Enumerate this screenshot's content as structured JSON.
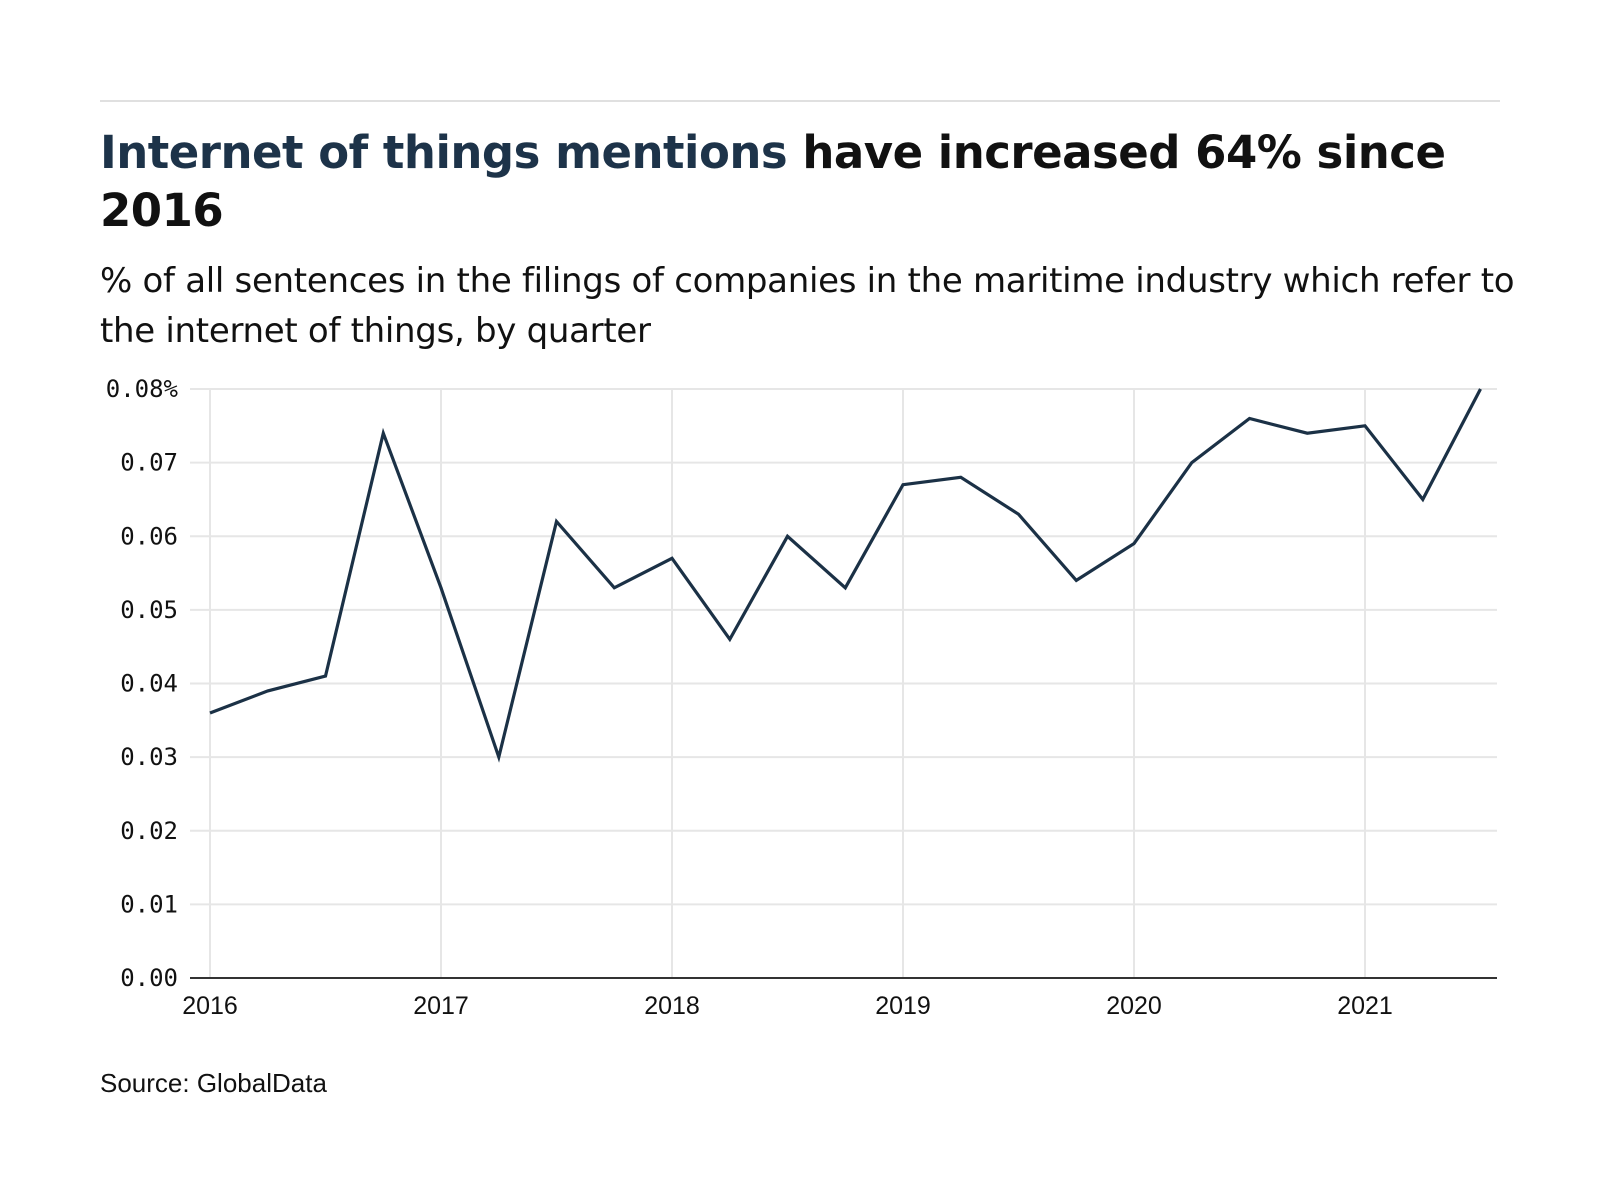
{
  "header": {
    "title_accent": "Internet of things mentions",
    "title_rest": " have increased 64% since 2016",
    "subtitle": "% of all sentences in the filings of companies in the maritime industry which refer to the internet of things, by quarter"
  },
  "footer": {
    "source": "Source: GlobalData"
  },
  "colors": {
    "accent": "#1d3349",
    "line": "#1b3146",
    "grid": "#e6e6e6",
    "axis": "#333333"
  },
  "chart_data": {
    "type": "line",
    "title": "Internet of things mentions have increased 64% since 2016",
    "subtitle": "% of all sentences in the filings of companies in the maritime industry which refer to the internet of things, by quarter",
    "xlabel": "",
    "ylabel": "",
    "x": [
      "2016 Q1",
      "2016 Q2",
      "2016 Q3",
      "2016 Q4",
      "2017 Q1",
      "2017 Q2",
      "2017 Q3",
      "2017 Q4",
      "2018 Q1",
      "2018 Q2",
      "2018 Q3",
      "2018 Q4",
      "2019 Q1",
      "2019 Q2",
      "2019 Q3",
      "2019 Q4",
      "2020 Q1",
      "2020 Q2",
      "2020 Q3",
      "2020 Q4",
      "2021 Q1",
      "2021 Q2",
      "2021 Q3"
    ],
    "series": [
      {
        "name": "Internet of things mentions",
        "values": [
          0.036,
          0.039,
          0.041,
          0.074,
          0.053,
          0.03,
          0.062,
          0.053,
          0.057,
          0.046,
          0.06,
          0.053,
          0.067,
          0.068,
          0.063,
          0.054,
          0.059,
          0.07,
          0.076,
          0.074,
          0.075,
          0.065,
          0.08
        ]
      }
    ],
    "ylim": [
      0,
      0.08
    ],
    "yticks": [
      0,
      0.01,
      0.02,
      0.03,
      0.04,
      0.05,
      0.06,
      0.07,
      0.08
    ],
    "ytick_labels": [
      "0.00",
      "0.01",
      "0.02",
      "0.03",
      "0.04",
      "0.05",
      "0.06",
      "0.07",
      "0.08%"
    ],
    "xticks": [
      "2016",
      "2017",
      "2018",
      "2019",
      "2020",
      "2021"
    ],
    "xlim_years": [
      2015.9,
      2021.7
    ],
    "grid": true,
    "legend": "none",
    "source": "Source: GlobalData"
  }
}
